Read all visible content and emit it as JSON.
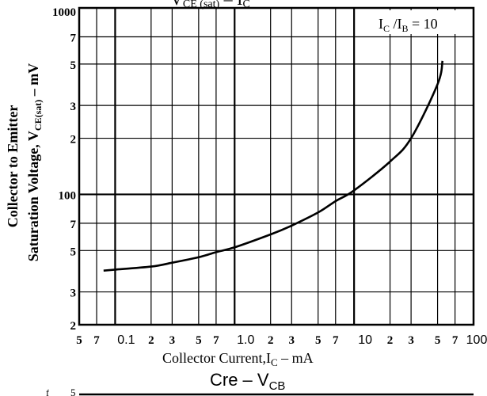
{
  "chart_data": {
    "type": "line",
    "x_scale": "log",
    "y_scale": "log",
    "xlim": [
      0.05,
      100
    ],
    "ylim": [
      20,
      1000
    ],
    "grid": true,
    "title_partial": "V",
    "title_partial_sub": "CE (sat)",
    "title_partial_rest": " – I",
    "title_partial_rest_sub": "C",
    "annotation": {
      "text_a": "I",
      "sub_a": "C",
      "slash": " /I",
      "sub_b": "B",
      "rest": " = 10"
    },
    "ylabel_line1": "Collector to Emitter",
    "ylabel_line2": "Saturation Voltage, V",
    "ylabel_line2_sub": "CE(sat)",
    "ylabel_line2_rest": " – mV",
    "xlabel": "Collector Current,I",
    "xlabel_sub": "C",
    "xlabel_rest": " – mA",
    "x_tick_labels": [
      {
        "v": 0.05,
        "t": "5"
      },
      {
        "v": 0.07,
        "t": "7"
      },
      {
        "v": 0.1,
        "t": "0.1"
      },
      {
        "v": 0.2,
        "t": "2"
      },
      {
        "v": 0.3,
        "t": "3"
      },
      {
        "v": 0.5,
        "t": "5"
      },
      {
        "v": 0.7,
        "t": "7"
      },
      {
        "v": 1,
        "t": "1.0"
      },
      {
        "v": 2,
        "t": "2"
      },
      {
        "v": 3,
        "t": "3"
      },
      {
        "v": 5,
        "t": "5"
      },
      {
        "v": 7,
        "t": "7"
      },
      {
        "v": 10,
        "t": "10"
      },
      {
        "v": 20,
        "t": "2"
      },
      {
        "v": 30,
        "t": "3"
      },
      {
        "v": 50,
        "t": "5"
      },
      {
        "v": 70,
        "t": "7"
      },
      {
        "v": 100,
        "t": "100"
      }
    ],
    "y_tick_labels": [
      {
        "v": 1000,
        "t": "1000"
      },
      {
        "v": 700,
        "t": "7"
      },
      {
        "v": 500,
        "t": "5"
      },
      {
        "v": 300,
        "t": "3"
      },
      {
        "v": 200,
        "t": "2"
      },
      {
        "v": 100,
        "t": "100"
      },
      {
        "v": 70,
        "t": "7"
      },
      {
        "v": 50,
        "t": "5"
      },
      {
        "v": 30,
        "t": "3"
      },
      {
        "v": 20,
        "t": "2"
      }
    ],
    "series": [
      {
        "x": [
          0.08,
          0.1,
          0.2,
          0.3,
          0.5,
          0.7,
          1,
          2,
          3,
          5,
          7,
          10,
          20,
          30,
          50,
          55
        ],
        "y": [
          39,
          39.5,
          41,
          43,
          46,
          49,
          52,
          61,
          68,
          80,
          92,
          105,
          150,
          200,
          390,
          520
        ]
      }
    ],
    "next_chart_title": {
      "text": "Cre  –  V",
      "sub": "CB"
    },
    "next_chart_fragment": {
      "a": "f",
      "b": "5"
    }
  }
}
